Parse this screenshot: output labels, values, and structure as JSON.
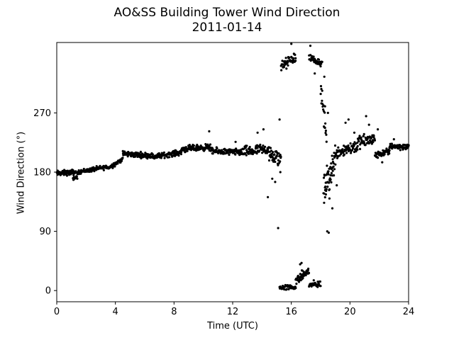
{
  "chart_data": {
    "type": "scatter",
    "title": "AO&SS Building Tower Wind Direction",
    "subtitle": "2011-01-14",
    "xlabel": "Time (UTC)",
    "ylabel": "Wind Direction (°)",
    "xlim": [
      0,
      24
    ],
    "ylim": [
      -17,
      377
    ],
    "xticks": [
      0,
      4,
      8,
      12,
      16,
      20,
      24
    ],
    "yticks": [
      0,
      90,
      180,
      270
    ],
    "grid": false,
    "marker_color": "#000000",
    "series": [
      {
        "segments": [
          {
            "x0": 0.0,
            "x1": 1.3,
            "y0": 178,
            "y1": 180,
            "spread": 6,
            "n": 75
          },
          {
            "x0": 1.1,
            "x1": 1.4,
            "y0": 170,
            "y1": 172,
            "spread": 3,
            "n": 15
          },
          {
            "x0": 1.4,
            "x1": 3.5,
            "y0": 180,
            "y1": 188,
            "spread": 5,
            "n": 90
          },
          {
            "x0": 3.5,
            "x1": 4.5,
            "y0": 186,
            "y1": 200,
            "spread": 5,
            "n": 45
          },
          {
            "x0": 4.5,
            "x1": 6.5,
            "y0": 208,
            "y1": 205,
            "spread": 6,
            "n": 100
          },
          {
            "x0": 6.5,
            "x1": 8.5,
            "y0": 203,
            "y1": 210,
            "spread": 6,
            "n": 100
          },
          {
            "x0": 8.5,
            "x1": 10.5,
            "y0": 215,
            "y1": 218,
            "spread": 7,
            "n": 100
          },
          {
            "x0": 10.5,
            "x1": 12.5,
            "y0": 212,
            "y1": 210,
            "spread": 7,
            "n": 100
          },
          {
            "x0": 12.5,
            "x1": 14.5,
            "y0": 210,
            "y1": 215,
            "spread": 12,
            "n": 95
          },
          {
            "x0": 14.5,
            "x1": 15.3,
            "y0": 205,
            "y1": 200,
            "spread": 18,
            "n": 40
          },
          {
            "x0": 15.2,
            "x1": 16.3,
            "y0": 5,
            "y1": 5,
            "spread": 6,
            "n": 40
          },
          {
            "x0": 15.3,
            "x1": 16.3,
            "y0": 340,
            "y1": 355,
            "spread": 12,
            "n": 45
          },
          {
            "x0": 16.3,
            "x1": 17.2,
            "y0": 15,
            "y1": 30,
            "spread": 10,
            "n": 55
          },
          {
            "x0": 17.2,
            "x1": 18.0,
            "y0": 8,
            "y1": 10,
            "spread": 8,
            "n": 35
          },
          {
            "x0": 17.2,
            "x1": 18.1,
            "y0": 355,
            "y1": 345,
            "spread": 8,
            "n": 40
          },
          {
            "x0": 18.0,
            "x1": 18.4,
            "y0": 310,
            "y1": 230,
            "spread": 20,
            "n": 20
          },
          {
            "x0": 18.2,
            "x1": 19.0,
            "y0": 150,
            "y1": 200,
            "spread": 35,
            "n": 55
          },
          {
            "x0": 19.0,
            "x1": 20.5,
            "y0": 210,
            "y1": 220,
            "spread": 15,
            "n": 70
          },
          {
            "x0": 20.5,
            "x1": 21.7,
            "y0": 225,
            "y1": 230,
            "spread": 15,
            "n": 60
          },
          {
            "x0": 21.7,
            "x1": 22.7,
            "y0": 205,
            "y1": 212,
            "spread": 7,
            "n": 50
          },
          {
            "x0": 22.7,
            "x1": 24.0,
            "y0": 220,
            "y1": 218,
            "spread": 7,
            "n": 60
          }
        ],
        "points": [
          [
            2.3,
            181
          ],
          [
            10.4,
            242
          ],
          [
            12.2,
            226
          ],
          [
            13.7,
            240
          ],
          [
            14.1,
            245
          ],
          [
            14.4,
            142
          ],
          [
            14.7,
            170
          ],
          [
            14.9,
            165
          ],
          [
            15.1,
            95
          ],
          [
            15.2,
            260
          ],
          [
            15.25,
            180
          ],
          [
            16.6,
            40
          ],
          [
            16.7,
            42
          ],
          [
            17.6,
            330
          ],
          [
            18.25,
            325
          ],
          [
            18.3,
            280
          ],
          [
            18.5,
            270
          ],
          [
            18.6,
            140
          ],
          [
            18.45,
            90
          ],
          [
            18.55,
            88
          ],
          [
            18.8,
            125
          ],
          [
            19.1,
            160
          ],
          [
            19.7,
            255
          ],
          [
            19.9,
            260
          ],
          [
            20.3,
            240
          ],
          [
            21.1,
            265
          ],
          [
            21.3,
            252
          ],
          [
            21.9,
            245
          ],
          [
            22.2,
            195
          ],
          [
            22.6,
            207
          ],
          [
            23.0,
            230
          ],
          [
            16.0,
            375
          ],
          [
            17.3,
            372
          ]
        ]
      }
    ]
  }
}
